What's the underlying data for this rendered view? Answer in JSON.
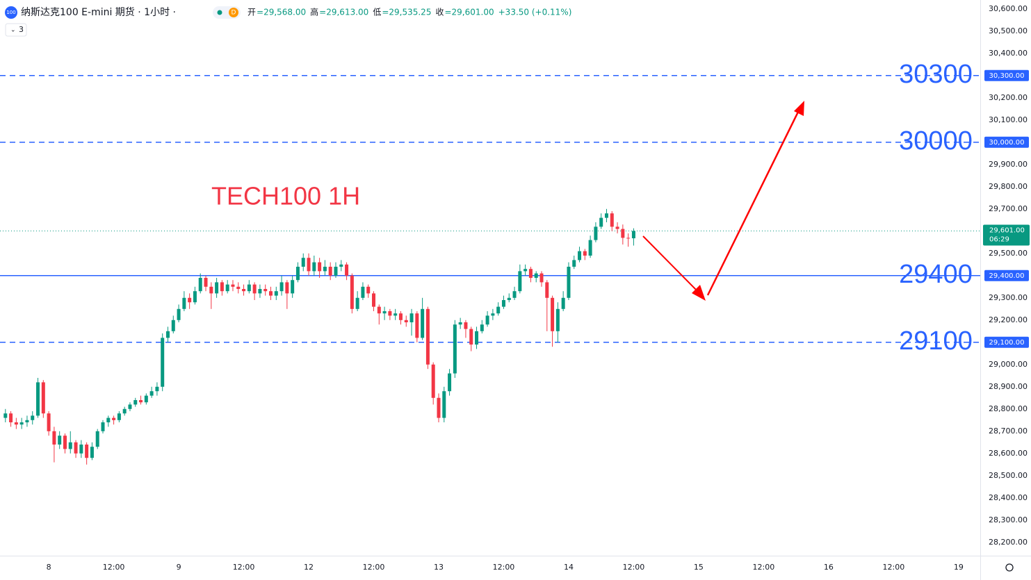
{
  "header": {
    "symbol_icon": "100",
    "title": "纳斯达克100 E-mini 期货 · 1小时 ·",
    "badge": "D",
    "ohlc": [
      {
        "label": "开",
        "value": "=29,568.00"
      },
      {
        "label": "高",
        "value": "=29,613.00"
      },
      {
        "label": "低",
        "value": "=29,535.25"
      },
      {
        "label": "收",
        "value": "=29,601.00"
      }
    ],
    "change": "+33.50 (+0.11%)",
    "indicator_count": "3"
  },
  "chart_data": {
    "type": "candlestick",
    "annotation": "TECH100 1H",
    "up_color": "#089981",
    "down_color": "#f23645",
    "level_color": "#2962ff",
    "xlim": [
      -9,
      172
    ],
    "ylim": [
      28140,
      30640
    ],
    "xticks": [
      {
        "value": 0,
        "label": "8"
      },
      {
        "value": 12,
        "label": "12:00"
      },
      {
        "value": 24,
        "label": "9"
      },
      {
        "value": 36,
        "label": "12:00"
      },
      {
        "value": 48,
        "label": "12"
      },
      {
        "value": 60,
        "label": "12:00"
      },
      {
        "value": 72,
        "label": "13"
      },
      {
        "value": 84,
        "label": "12:00"
      },
      {
        "value": 96,
        "label": "14"
      },
      {
        "value": 108,
        "label": "12:00"
      },
      {
        "value": 120,
        "label": "15"
      },
      {
        "value": 132,
        "label": "12:00"
      },
      {
        "value": 144,
        "label": "16"
      },
      {
        "value": 156,
        "label": "12:00"
      },
      {
        "value": 168,
        "label": "19"
      }
    ],
    "yticks": [
      {
        "value": 30600,
        "label": "30,600.00"
      },
      {
        "value": 30500,
        "label": "30,500.00"
      },
      {
        "value": 30400,
        "label": "30,400.00"
      },
      {
        "value": 30200,
        "label": "30,200.00"
      },
      {
        "value": 30100,
        "label": "30,100.00"
      },
      {
        "value": 29900,
        "label": "29,900.00"
      },
      {
        "value": 29800,
        "label": "29,800.00"
      },
      {
        "value": 29700,
        "label": "29,700.00"
      },
      {
        "value": 29500,
        "label": "29,500.00"
      },
      {
        "value": 29300,
        "label": "29,300.00"
      },
      {
        "value": 29200,
        "label": "29,200.00"
      },
      {
        "value": 29000,
        "label": "29,000.00"
      },
      {
        "value": 28900,
        "label": "28,900.00"
      },
      {
        "value": 28800,
        "label": "28,800.00"
      },
      {
        "value": 28700,
        "label": "28,700.00"
      },
      {
        "value": 28600,
        "label": "28,600.00"
      },
      {
        "value": 28500,
        "label": "28,500.00"
      },
      {
        "value": 28400,
        "label": "28,400.00"
      },
      {
        "value": 28300,
        "label": "28,300.00"
      },
      {
        "value": 28200,
        "label": "28,200.00"
      }
    ],
    "levels": [
      {
        "value": 30300,
        "label": "30300",
        "tag": "30,300.00",
        "style": "dashed"
      },
      {
        "value": 30000,
        "label": "30000",
        "tag": "30,000.00",
        "style": "dashed"
      },
      {
        "value": 29400,
        "label": "29400",
        "tag": "29,400.00",
        "style": "solid"
      },
      {
        "value": 29100,
        "label": "29100",
        "tag": "29,100.00",
        "style": "dashed"
      }
    ],
    "last_price": {
      "value": 29601,
      "label": "29,601.00",
      "countdown": "06:29"
    },
    "x": [
      -8,
      -7,
      -6,
      -5,
      -4,
      -3,
      -2,
      -1,
      0,
      1,
      2,
      3,
      4,
      5,
      6,
      7,
      8,
      9,
      10,
      11,
      12,
      13,
      14,
      15,
      16,
      17,
      18,
      19,
      20,
      21,
      22,
      23,
      24,
      25,
      26,
      27,
      28,
      29,
      30,
      31,
      32,
      33,
      34,
      35,
      36,
      37,
      38,
      39,
      40,
      41,
      42,
      43,
      44,
      45,
      46,
      47,
      48,
      49,
      50,
      51,
      52,
      53,
      54,
      55,
      56,
      57,
      58,
      59,
      60,
      61,
      62,
      63,
      64,
      65,
      66,
      67,
      68,
      69,
      70,
      71,
      72,
      73,
      74,
      75,
      76,
      77,
      78,
      79,
      80,
      81,
      82,
      83,
      84,
      85,
      86,
      87,
      88,
      89,
      90,
      91,
      92,
      93,
      94,
      95,
      96,
      97,
      98,
      99,
      100,
      101,
      102,
      103,
      104,
      105,
      106,
      107,
      108
    ],
    "open": [
      28760,
      28780,
      28740,
      28730,
      28740,
      28750,
      28770,
      28920,
      28780,
      28700,
      28640,
      28680,
      28620,
      28650,
      28600,
      28640,
      28580,
      28630,
      28700,
      28740,
      28760,
      28750,
      28780,
      28800,
      28820,
      28840,
      28830,
      28860,
      28880,
      28900,
      29120,
      29150,
      29200,
      29250,
      29300,
      29280,
      29330,
      29390,
      29350,
      29320,
      29370,
      29330,
      29360,
      29350,
      29340,
      29330,
      29360,
      29320,
      29340,
      29330,
      29310,
      29330,
      29370,
      29320,
      29380,
      29440,
      29480,
      29420,
      29460,
      29420,
      29440,
      29400,
      29440,
      29450,
      29400,
      29250,
      29300,
      29350,
      29320,
      29260,
      29230,
      29240,
      29220,
      29230,
      29200,
      29190,
      29230,
      29120,
      29250,
      29000,
      28850,
      28760,
      28880,
      28960,
      29180,
      29190,
      29160,
      29090,
      29150,
      29180,
      29220,
      29230,
      29260,
      29290,
      29300,
      29330,
      29420,
      29430,
      29390,
      29410,
      29370,
      29300,
      29150,
      29250,
      29300,
      29440,
      29470,
      29510,
      29490,
      29560,
      29620,
      29660,
      29680,
      29620,
      29610,
      29570,
      29568
    ],
    "high": [
      28800,
      28790,
      28760,
      28760,
      28770,
      28790,
      28940,
      28930,
      28790,
      28720,
      28700,
      28690,
      28700,
      28660,
      28660,
      28650,
      28650,
      28710,
      28750,
      28770,
      28770,
      28790,
      28810,
      28830,
      28850,
      28860,
      28870,
      28900,
      28920,
      29140,
      29170,
      29220,
      29270,
      29330,
      29320,
      29350,
      29410,
      29400,
      29370,
      29390,
      29380,
      29380,
      29380,
      29370,
      29360,
      29380,
      29370,
      29360,
      29360,
      29350,
      29350,
      29400,
      29380,
      29400,
      29460,
      29500,
      29500,
      29490,
      29480,
      29470,
      29460,
      29460,
      29470,
      29460,
      29410,
      29330,
      29370,
      29360,
      29330,
      29270,
      29260,
      29250,
      29250,
      29240,
      29220,
      29250,
      29240,
      29300,
      29260,
      29010,
      28870,
      28900,
      28980,
      29200,
      29210,
      29200,
      29170,
      29170,
      29200,
      29240,
      29250,
      29280,
      29310,
      29320,
      29350,
      29450,
      29450,
      29440,
      29420,
      29420,
      29380,
      29310,
      29280,
      29330,
      29460,
      29490,
      29530,
      29520,
      29580,
      29640,
      29680,
      29700,
      29690,
      29640,
      29630,
      29590,
      29613
    ],
    "low": [
      28740,
      28720,
      28710,
      28710,
      28720,
      28730,
      28760,
      28760,
      28680,
      28560,
      28620,
      28600,
      28600,
      28580,
      28580,
      28550,
      28570,
      28620,
      28690,
      28720,
      28730,
      28740,
      28770,
      28790,
      28810,
      28820,
      28820,
      28850,
      28860,
      28880,
      29100,
      29140,
      29190,
      29240,
      29250,
      29270,
      29320,
      29330,
      29250,
      29300,
      29310,
      29320,
      29330,
      29320,
      29310,
      29320,
      29290,
      29300,
      29310,
      29290,
      29290,
      29310,
      29250,
      29300,
      29370,
      29420,
      29400,
      29400,
      29390,
      29400,
      29380,
      29390,
      29420,
      29380,
      29230,
      29240,
      29290,
      29300,
      29240,
      29180,
      29200,
      29200,
      29200,
      29180,
      29170,
      29130,
      29100,
      29110,
      28980,
      28820,
      28740,
      28740,
      28860,
      28940,
      29160,
      29120,
      29060,
      29070,
      29140,
      29170,
      29200,
      29220,
      29250,
      29280,
      29290,
      29320,
      29400,
      29370,
      29370,
      29350,
      29150,
      29080,
      29100,
      29240,
      29290,
      29430,
      29460,
      29470,
      29480,
      29550,
      29610,
      29640,
      29600,
      29590,
      29540,
      29530,
      29535.25
    ],
    "close": [
      28780,
      28740,
      28730,
      28740,
      28750,
      28770,
      28920,
      28780,
      28700,
      28640,
      28680,
      28620,
      28650,
      28600,
      28640,
      28580,
      28630,
      28700,
      28740,
      28760,
      28750,
      28780,
      28800,
      28820,
      28840,
      28830,
      28860,
      28880,
      28900,
      29120,
      29150,
      29200,
      29250,
      29300,
      29280,
      29330,
      29390,
      29350,
      29320,
      29370,
      29330,
      29360,
      29350,
      29340,
      29330,
      29360,
      29320,
      29340,
      29330,
      29310,
      29330,
      29370,
      29320,
      29380,
      29440,
      29480,
      29420,
      29460,
      29420,
      29440,
      29400,
      29440,
      29450,
      29400,
      29250,
      29300,
      29350,
      29320,
      29260,
      29230,
      29240,
      29220,
      29230,
      29200,
      29190,
      29230,
      29120,
      29250,
      29000,
      28850,
      28760,
      28880,
      28960,
      29180,
      29190,
      29160,
      29090,
      29150,
      29180,
      29220,
      29230,
      29260,
      29290,
      29300,
      29330,
      29420,
      29430,
      29390,
      29410,
      29370,
      29300,
      29150,
      29250,
      29300,
      29440,
      29470,
      29510,
      29490,
      29560,
      29620,
      29660,
      29680,
      29620,
      29610,
      29570,
      29568,
      29601
    ]
  }
}
